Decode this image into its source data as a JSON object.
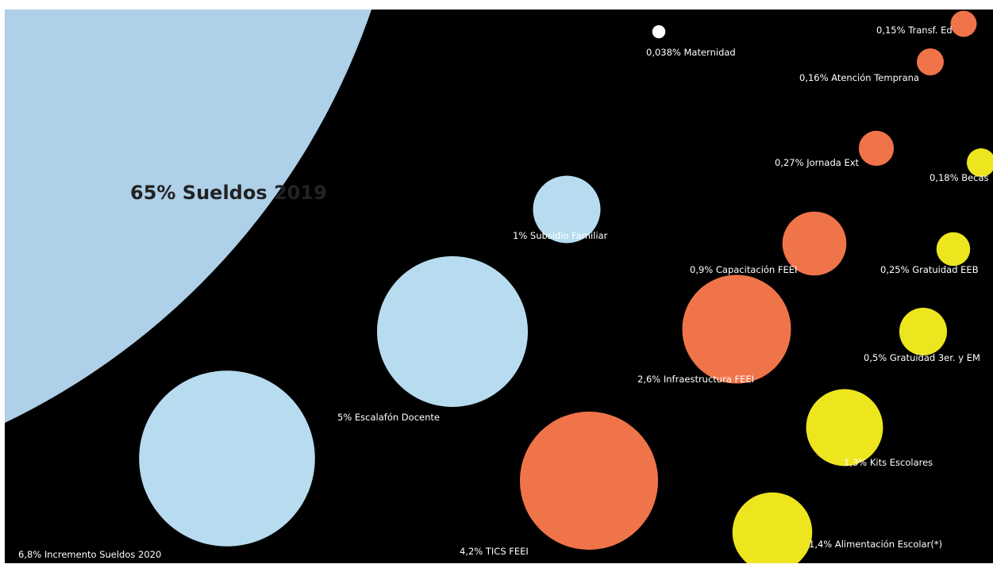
{
  "chart_data": {
    "type": "bubble",
    "unit": "%",
    "colors": {
      "background": "#000000",
      "light_blue": "#b7dcef",
      "big_blue": "#aed0e8",
      "orange": "#f0744a",
      "yellow": "#ede61f",
      "white": "#ffffff",
      "big_label": "#222222",
      "label": "#ffffff"
    },
    "items": [
      {
        "label": "65% Sueldos 2019",
        "value": 65,
        "color": "big_blue"
      },
      {
        "label": "6,8% Incremento Sueldos 2020",
        "value": 6.8,
        "color": "light_blue"
      },
      {
        "label": "5% Escalafón Docente",
        "value": 5,
        "color": "light_blue"
      },
      {
        "label": "1% Subsidio Familiar",
        "value": 1,
        "color": "light_blue"
      },
      {
        "label": "4,2% TICS FEEI",
        "value": 4.2,
        "color": "orange"
      },
      {
        "label": "2,6% Infraestructura FEEI",
        "value": 2.6,
        "color": "orange"
      },
      {
        "label": "0,9% Capacitación FEEI",
        "value": 0.9,
        "color": "orange"
      },
      {
        "label": "0,27% Jornada Ext",
        "value": 0.27,
        "color": "orange"
      },
      {
        "label": "0,16% Atención Temprana",
        "value": 0.16,
        "color": "orange"
      },
      {
        "label": "0,15% Transf. Ed",
        "value": 0.15,
        "color": "orange"
      },
      {
        "label": "0,038% Maternidad",
        "value": 0.038,
        "color": "white"
      },
      {
        "label": "1,4% Alimentación Escolar(*)",
        "value": 1.4,
        "color": "yellow"
      },
      {
        "label": "1,3% Kits Escolares",
        "value": 1.3,
        "color": "yellow"
      },
      {
        "label": "0,5% Gratuidad 3er. y EM",
        "value": 0.5,
        "color": "yellow"
      },
      {
        "label": "0,25% Gratuidad EEB",
        "value": 0.25,
        "color": "yellow"
      },
      {
        "label": "0,18% Becas",
        "value": 0.18,
        "color": "yellow"
      }
    ]
  }
}
